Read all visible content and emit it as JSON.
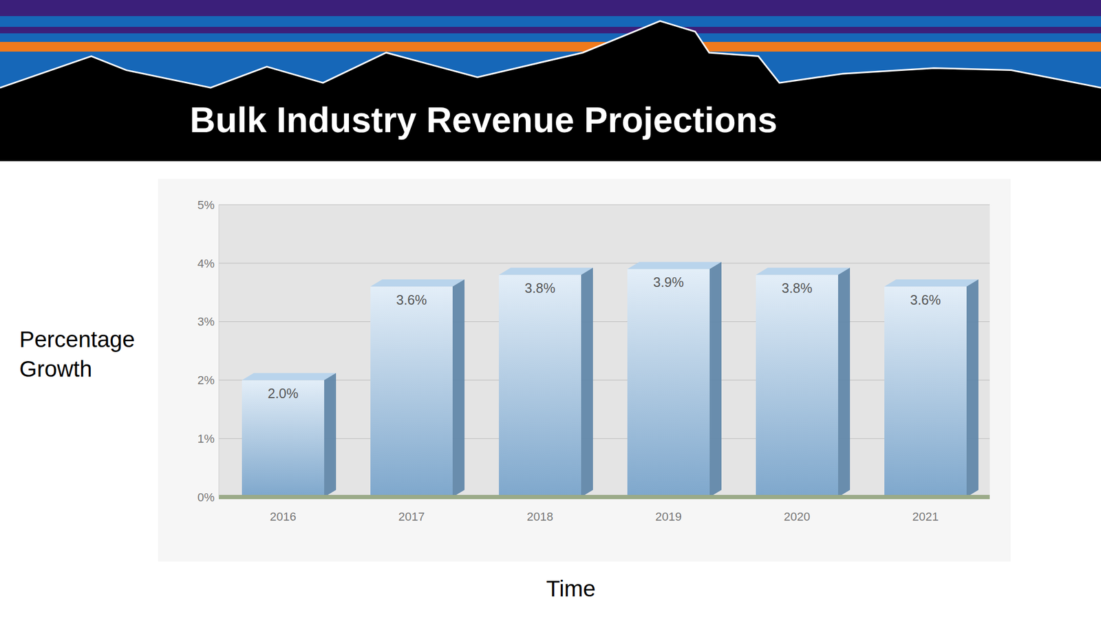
{
  "chart_data": {
    "type": "bar",
    "title": "Bulk Industry Revenue Projections",
    "x_label": "Time",
    "y_label": "Percentage Growth",
    "categories": [
      "2016",
      "2017",
      "2018",
      "2019",
      "2020",
      "2021"
    ],
    "values": [
      2.0,
      3.6,
      3.8,
      3.9,
      3.8,
      3.6
    ],
    "value_labels": [
      "2.0%",
      "3.6%",
      "3.8%",
      "3.9%",
      "3.8%",
      "3.6%"
    ],
    "color": "#7ea7cc",
    "ylim": [
      0,
      5
    ],
    "yticks": [
      {
        "value": 0,
        "label": "0%"
      },
      {
        "value": 1,
        "label": "1%"
      },
      {
        "value": 2,
        "label": "2%"
      },
      {
        "value": 3,
        "label": "3%"
      },
      {
        "value": 4,
        "label": "4%"
      },
      {
        "value": 5,
        "label": "5%"
      }
    ],
    "grid": true,
    "data_labels": true
  }
}
